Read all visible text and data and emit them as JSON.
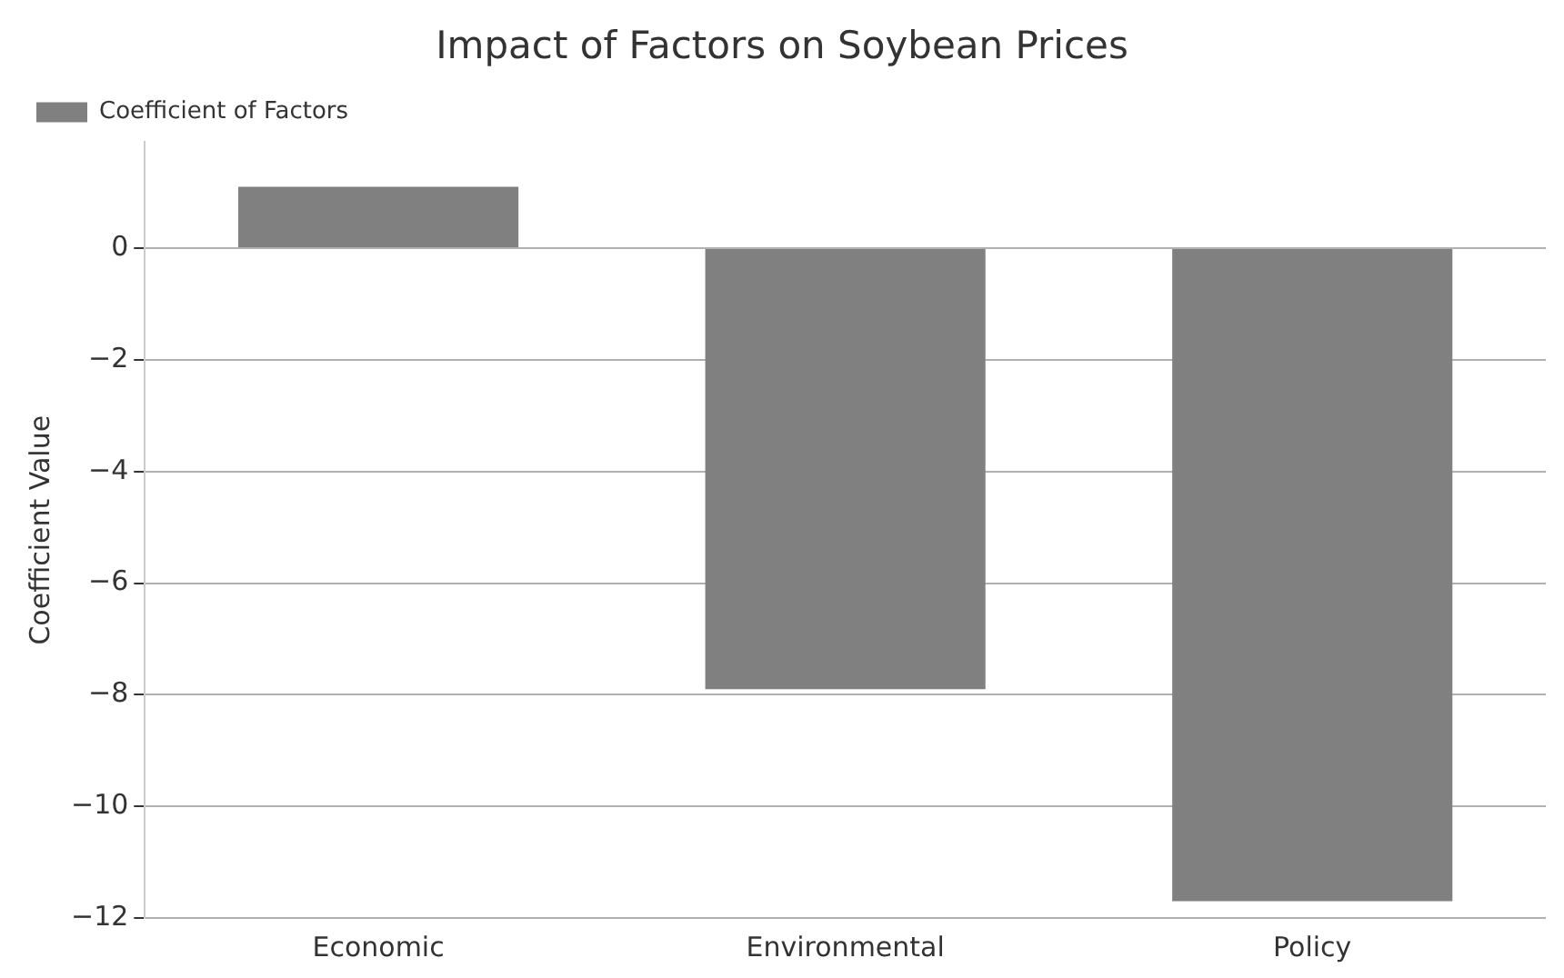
{
  "chart_data": {
    "type": "bar",
    "title": "Impact of Factors on Soybean Prices",
    "ylabel": "Coefficient Value",
    "categories": [
      "Economic",
      "Environmental",
      "Policy"
    ],
    "series": [
      {
        "name": "Coefficient of Factors",
        "color": "#808080",
        "values": [
          1.1,
          -7.9,
          -11.7
        ]
      }
    ],
    "ylim": [
      -12,
      1.9
    ],
    "yticks": [
      0,
      -2,
      -4,
      -6,
      -8,
      -10,
      -12
    ],
    "grid": "y",
    "legend": "top left"
  }
}
